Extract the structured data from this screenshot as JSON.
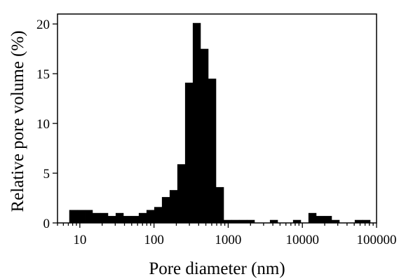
{
  "chart_data": {
    "type": "bar",
    "xscale": "log",
    "xlim": [
      5,
      100000
    ],
    "ylim": [
      0,
      21
    ],
    "xlabel": "Pore diameter (nm)",
    "ylabel": "Relative pore volume (%)",
    "xticks": [
      10,
      100,
      1000,
      10000,
      100000
    ],
    "xtick_labels": [
      "10",
      "100",
      "1000",
      "10000",
      "100000"
    ],
    "yticks": [
      0,
      5,
      10,
      15,
      20
    ],
    "ytick_labels": [
      "0",
      "5",
      "10",
      "15",
      "20"
    ],
    "grid": false,
    "bar_color": "#000000",
    "bins": [
      {
        "x0": 7.2,
        "x1": 9.2,
        "value": 1.3
      },
      {
        "x0": 9.2,
        "x1": 11.7,
        "value": 1.3
      },
      {
        "x0": 11.7,
        "x1": 14.8,
        "value": 1.3
      },
      {
        "x0": 14.8,
        "x1": 18.8,
        "value": 1.0
      },
      {
        "x0": 18.8,
        "x1": 23.9,
        "value": 1.0
      },
      {
        "x0": 23.9,
        "x1": 30.4,
        "value": 0.7
      },
      {
        "x0": 30.4,
        "x1": 38.6,
        "value": 1.0
      },
      {
        "x0": 38.6,
        "x1": 49.0,
        "value": 0.7
      },
      {
        "x0": 49.0,
        "x1": 62.3,
        "value": 0.7
      },
      {
        "x0": 62.3,
        "x1": 79.2,
        "value": 1.0
      },
      {
        "x0": 79.2,
        "x1": 100.6,
        "value": 1.3
      },
      {
        "x0": 100.6,
        "x1": 127.8,
        "value": 1.6
      },
      {
        "x0": 127.8,
        "x1": 162.4,
        "value": 2.6
      },
      {
        "x0": 162.4,
        "x1": 206.3,
        "value": 3.3
      },
      {
        "x0": 206.3,
        "x1": 262.1,
        "value": 5.9
      },
      {
        "x0": 262.1,
        "x1": 333.0,
        "value": 14.1
      },
      {
        "x0": 333.0,
        "x1": 423.1,
        "value": 20.1
      },
      {
        "x0": 423.1,
        "x1": 537.5,
        "value": 17.5
      },
      {
        "x0": 537.5,
        "x1": 682.9,
        "value": 14.5
      },
      {
        "x0": 682.9,
        "x1": 867.7,
        "value": 3.6
      },
      {
        "x0": 867.7,
        "x1": 1102.5,
        "value": 0.3
      },
      {
        "x0": 1102.5,
        "x1": 1400.7,
        "value": 0.3
      },
      {
        "x0": 1400.7,
        "x1": 1779.7,
        "value": 0.3
      },
      {
        "x0": 1779.7,
        "x1": 2261.1,
        "value": 0.3
      },
      {
        "x0": 3650,
        "x1": 4637,
        "value": 0.3
      },
      {
        "x0": 7480,
        "x1": 9503,
        "value": 0.3
      },
      {
        "x0": 12075,
        "x1": 15342,
        "value": 1.0
      },
      {
        "x0": 15342,
        "x1": 19493,
        "value": 0.7
      },
      {
        "x0": 19493,
        "x1": 24767,
        "value": 0.7
      },
      {
        "x0": 24767,
        "x1": 31468,
        "value": 0.3
      },
      {
        "x0": 50797,
        "x1": 64541,
        "value": 0.3
      },
      {
        "x0": 64541,
        "x1": 82005,
        "value": 0.3
      }
    ]
  }
}
